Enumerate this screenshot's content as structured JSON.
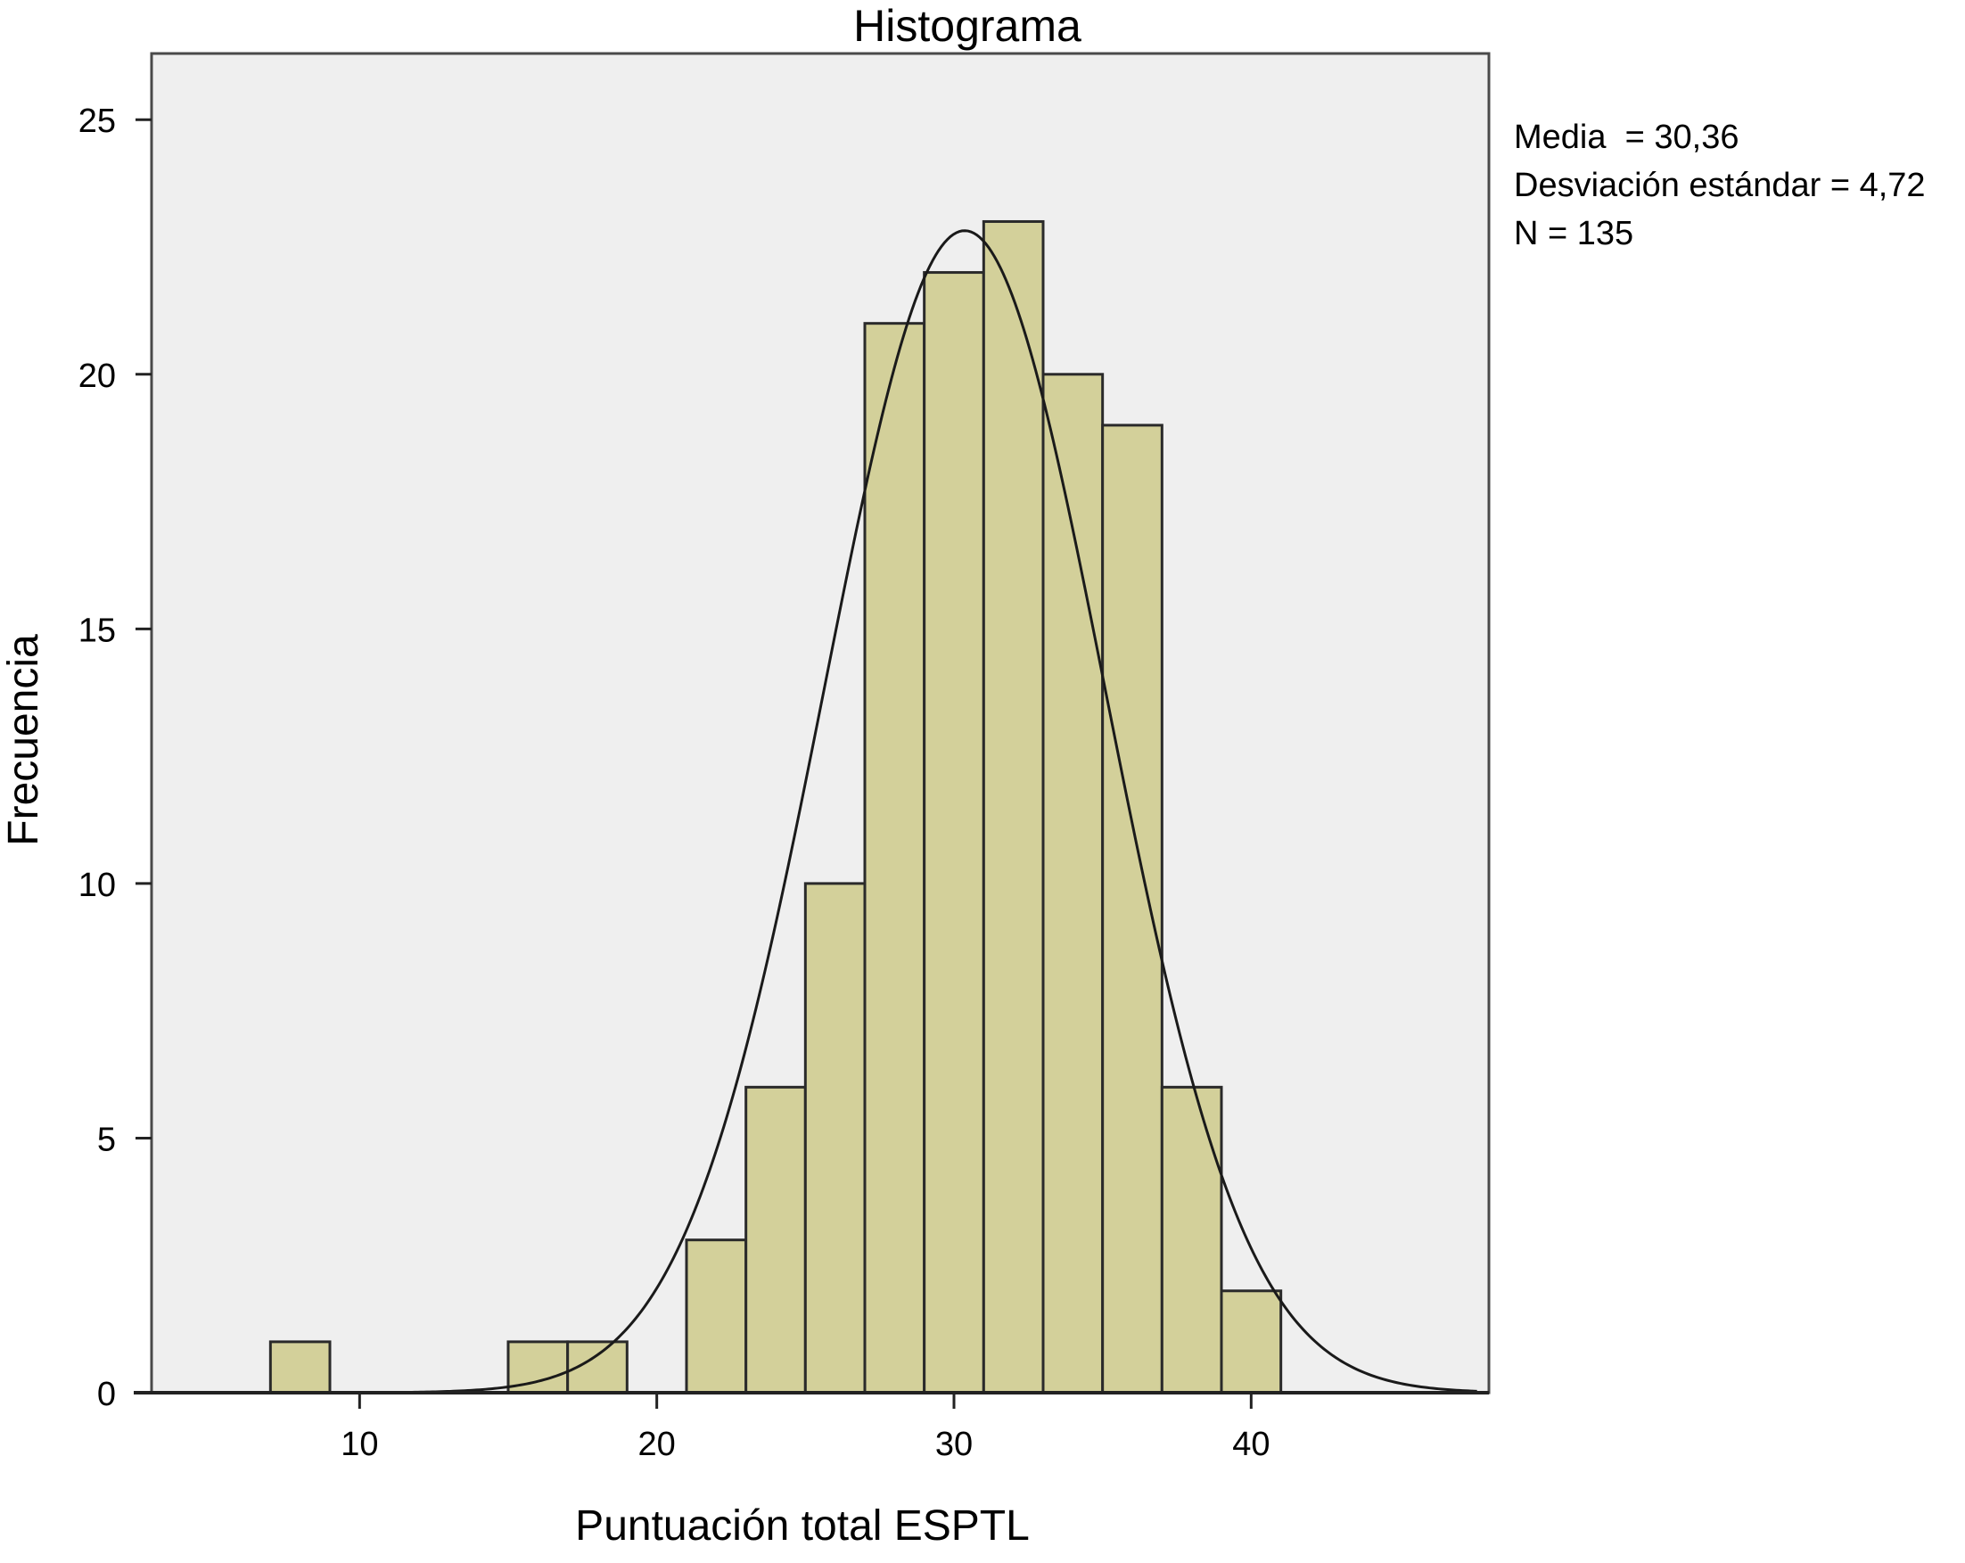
{
  "chart_data": {
    "type": "bar",
    "title": "Histograma",
    "xlabel": "Puntuación total ESPTL",
    "ylabel": "Frecuencia",
    "xlim": [
      3,
      48
    ],
    "ylim": [
      0,
      25
    ],
    "xticks": [
      10,
      20,
      30,
      40
    ],
    "yticks": [
      0,
      5,
      10,
      15,
      20,
      25
    ],
    "bin_width": 2,
    "bins": [
      {
        "start": 7,
        "end": 9,
        "count": 1
      },
      {
        "start": 15,
        "end": 17,
        "count": 1
      },
      {
        "start": 17,
        "end": 19,
        "count": 1
      },
      {
        "start": 21,
        "end": 23,
        "count": 3
      },
      {
        "start": 23,
        "end": 25,
        "count": 6
      },
      {
        "start": 25,
        "end": 27,
        "count": 10
      },
      {
        "start": 27,
        "end": 29,
        "count": 21
      },
      {
        "start": 29,
        "end": 31,
        "count": 22
      },
      {
        "start": 31,
        "end": 33,
        "count": 23
      },
      {
        "start": 33,
        "end": 35,
        "count": 20
      },
      {
        "start": 35,
        "end": 37,
        "count": 19
      },
      {
        "start": 37,
        "end": 39,
        "count": 6
      },
      {
        "start": 39,
        "end": 41,
        "count": 2
      }
    ],
    "normal_curve": {
      "mean": 30.36,
      "sd": 4.72,
      "n": 135
    },
    "stats": [
      "Media  = 30,36",
      "Desviación estándar = 4,72",
      "N = 135"
    ],
    "colors": {
      "bar_fill": "#d3d09a",
      "bar_stroke": "#2a2a2a",
      "plot_bg": "#efefef",
      "curve": "#1a1a1a",
      "frame": "#4a4a4a"
    },
    "grid": false
  }
}
